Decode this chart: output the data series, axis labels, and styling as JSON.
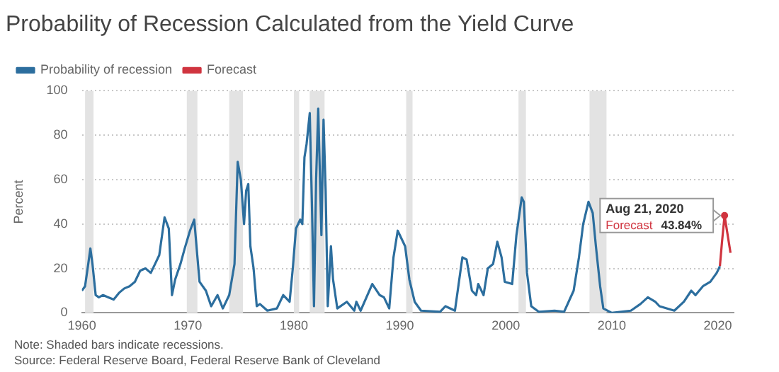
{
  "chart_data": {
    "type": "line",
    "title": "Probability of Recession Calculated from the Yield Curve",
    "ylabel": "Percent",
    "xlim": [
      1960,
      2021.5
    ],
    "xticks": [
      1960,
      1970,
      1980,
      1990,
      2000,
      2010,
      2020
    ],
    "ylim": [
      0,
      100
    ],
    "yticks": [
      0,
      20,
      40,
      60,
      80,
      100
    ],
    "grid": "y",
    "legend": "top left",
    "bands": [
      {
        "axis": "x",
        "from": 1960.3,
        "to": 1961.1,
        "color": "#e3e3e3"
      },
      {
        "axis": "x",
        "from": 1969.9,
        "to": 1970.9,
        "color": "#e3e3e3"
      },
      {
        "axis": "x",
        "from": 1973.9,
        "to": 1975.2,
        "color": "#e3e3e3"
      },
      {
        "axis": "x",
        "from": 1980.0,
        "to": 1980.5,
        "color": "#e3e3e3"
      },
      {
        "axis": "x",
        "from": 1981.5,
        "to": 1982.9,
        "color": "#e3e3e3"
      },
      {
        "axis": "x",
        "from": 1990.6,
        "to": 1991.2,
        "color": "#e3e3e3"
      },
      {
        "axis": "x",
        "from": 2001.2,
        "to": 2001.9,
        "color": "#e3e3e3"
      },
      {
        "axis": "x",
        "from": 2007.9,
        "to": 2009.5,
        "color": "#e3e3e3"
      }
    ],
    "series": [
      {
        "name": "Probability of recession",
        "color": "#2c6e9e",
        "x": [
          1960.0,
          1960.3,
          1960.6,
          1960.8,
          1961.0,
          1961.3,
          1961.6,
          1962.0,
          1962.5,
          1963.0,
          1963.5,
          1964.0,
          1964.5,
          1965.0,
          1965.5,
          1966.0,
          1966.5,
          1966.9,
          1967.3,
          1967.8,
          1968.2,
          1968.5,
          1968.8,
          1969.3,
          1969.7,
          1970.2,
          1970.6,
          1971.1,
          1971.7,
          1972.2,
          1972.8,
          1973.3,
          1973.9,
          1974.4,
          1974.7,
          1975.0,
          1975.3,
          1975.5,
          1975.7,
          1975.9,
          1976.2,
          1976.5,
          1976.8,
          1977.5,
          1978.4,
          1979.0,
          1979.6,
          1979.9,
          1980.2,
          1980.6,
          1980.8,
          1981.0,
          1981.2,
          1981.5,
          1981.7,
          1981.9,
          1982.1,
          1982.3,
          1982.6,
          1982.8,
          1983.0,
          1983.2,
          1983.5,
          1983.7,
          1984.1,
          1985.0,
          1985.7,
          1985.9,
          1986.3,
          1987.4,
          1988.1,
          1988.5,
          1989.0,
          1989.4,
          1989.8,
          1990.0,
          1990.5,
          1990.9,
          1991.4,
          1992.0,
          1993.8,
          1994.3,
          1995.2,
          1995.9,
          1996.3,
          1996.8,
          1997.2,
          1997.4,
          1997.9,
          1998.3,
          1998.8,
          1999.2,
          1999.6,
          1999.9,
          2000.6,
          2001.0,
          2001.5,
          2001.7,
          2002.0,
          2002.4,
          2003.1,
          2004.6,
          2005.5,
          2006.4,
          2006.9,
          2007.3,
          2007.8,
          2008.2,
          2008.5,
          2008.9,
          2009.2,
          2010.0,
          2011.8,
          2012.7,
          2013.4,
          2014.1,
          2014.5,
          2015.9,
          2016.8,
          2017.5,
          2017.9,
          2018.6,
          2019.3,
          2019.9,
          2020.2
        ],
        "values": [
          10,
          12,
          22,
          29,
          22,
          8,
          7,
          8,
          7,
          6,
          9,
          11,
          12,
          14,
          19,
          20,
          18,
          22,
          26,
          43,
          38,
          8,
          15,
          22,
          29,
          37,
          42,
          14,
          10,
          3,
          8,
          2,
          8,
          22,
          68,
          60,
          40,
          55,
          58,
          30,
          20,
          3,
          4,
          1,
          2,
          8,
          5,
          20,
          38,
          42,
          40,
          70,
          76,
          90,
          50,
          3,
          60,
          92,
          35,
          87,
          55,
          3,
          30,
          15,
          2,
          5,
          1,
          5,
          1,
          13,
          8,
          7,
          2,
          25,
          37,
          35,
          30,
          15,
          5,
          1,
          0.5,
          3,
          1,
          25,
          24,
          10,
          8,
          13,
          8,
          20,
          22,
          32,
          25,
          14,
          13,
          35,
          52,
          50,
          18,
          3,
          0.5,
          1,
          0.5,
          10,
          25,
          40,
          50,
          45,
          30,
          12,
          2,
          0,
          1,
          4,
          7,
          5,
          3,
          1,
          5,
          10,
          8,
          12,
          14,
          18,
          21
        ]
      },
      {
        "name": "Forecast",
        "color": "#d0343f",
        "x": [
          2020.2,
          2020.4,
          2020.64,
          2020.9,
          2021.2
        ],
        "values": [
          21,
          32,
          43.84,
          36,
          27
        ]
      }
    ],
    "annotations": [
      "Aug 21, 2020",
      {
        "text": "Forecast  43.84%",
        "x": 2020.64,
        "y": 43.84
      },
      "Note: Shaded bars indicate recessions.",
      "Source: Federal Reserve Board, Federal Reserve Bank of Cleveland"
    ]
  }
}
